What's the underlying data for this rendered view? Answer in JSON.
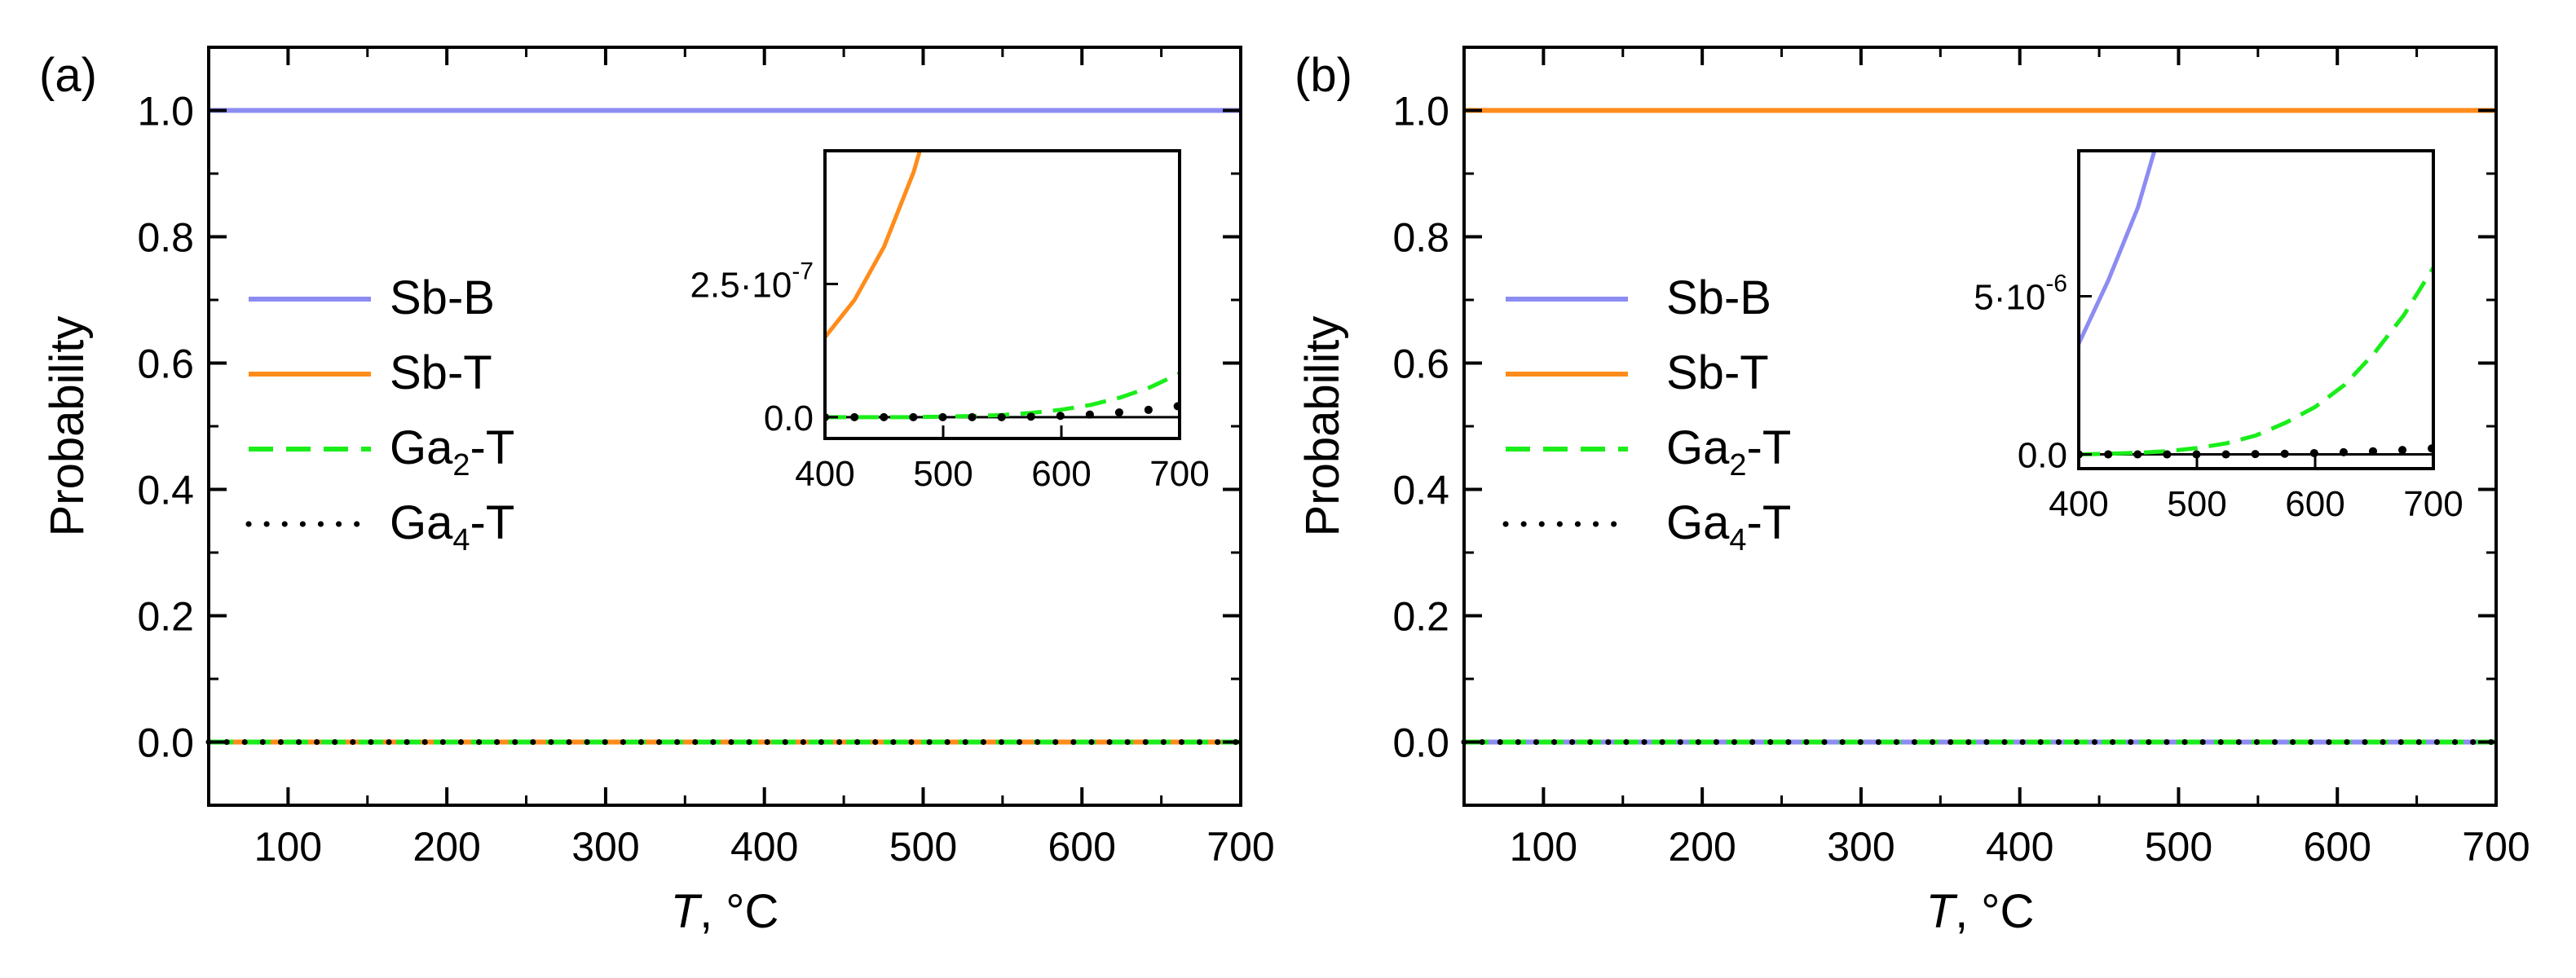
{
  "figure": {
    "panels": [
      "(a)",
      "(b)"
    ],
    "legend": [
      {
        "label": "Sb-B",
        "color": "#8c8cf2",
        "dash": "solid"
      },
      {
        "label": "Sb-T",
        "color": "#ff8c1a",
        "dash": "solid"
      },
      {
        "label": "Ga2-T",
        "base": "Ga",
        "sub": "2",
        "suffix": "-T",
        "color": "#1aee1a",
        "dash": "dashed"
      },
      {
        "label": "Ga4-T",
        "base": "Ga",
        "sub": "4",
        "suffix": "-T",
        "color": "#000000",
        "dash": "dotted"
      }
    ]
  },
  "chart_data": [
    {
      "type": "line",
      "panel": "(a)",
      "xlabel_italic": "T",
      "xlabel_rest": ", °C",
      "ylabel": "Probability",
      "xlim": [
        50,
        700
      ],
      "ylim": [
        -0.1,
        1.1
      ],
      "xticks": [
        100,
        200,
        300,
        400,
        500,
        600,
        700
      ],
      "yticks": [
        "0.0",
        "0.2",
        "0.4",
        "0.6",
        "0.8",
        "1.0"
      ],
      "x": [
        50,
        700
      ],
      "series": [
        {
          "name": "Sb-B",
          "values": [
            1.0,
            1.0
          ]
        },
        {
          "name": "Sb-T",
          "values": [
            0.0,
            0.0
          ]
        },
        {
          "name": "Ga2-T",
          "values": [
            0.0,
            0.0
          ]
        },
        {
          "name": "Ga4-T",
          "values": [
            0.0,
            0.0
          ]
        }
      ],
      "inset": {
        "xlim": [
          400,
          700
        ],
        "ylim": [
          -4e-08,
          5e-07
        ],
        "xticks": [
          "400",
          "500",
          "600",
          "700"
        ],
        "yticks": [
          {
            "value": 0,
            "mantissa": "0.0",
            "exp": ""
          },
          {
            "value": 2.5e-07,
            "mantissa": "2.5·10",
            "exp": "-7"
          }
        ],
        "x": [
          400,
          425,
          450,
          475,
          500,
          525,
          550,
          575,
          600,
          625,
          650,
          675,
          700
        ],
        "series": [
          {
            "name": "Sb-T",
            "values": [
              1.5e-07,
              2.2e-07,
              3.2e-07,
              4.6e-07,
              6.5e-07,
              null,
              null,
              null,
              null,
              null,
              null,
              null,
              null
            ]
          },
          {
            "name": "Ga2-T",
            "values": [
              0,
              0,
              0,
              0,
              1e-09,
              2e-09,
              4e-09,
              8e-09,
              1.4e-08,
              2.3e-08,
              3.7e-08,
              5.6e-08,
              8.2e-08
            ]
          },
          {
            "name": "Ga4-T",
            "values": [
              0,
              0,
              0,
              0,
              0,
              0,
              0,
              1e-09,
              2.5e-09,
              5e-09,
              9e-09,
              1.4e-08,
              2.1e-08
            ]
          }
        ]
      }
    },
    {
      "type": "line",
      "panel": "(b)",
      "xlabel_italic": "T",
      "xlabel_rest": ", °C",
      "ylabel": "Probability",
      "xlim": [
        50,
        700
      ],
      "ylim": [
        -0.1,
        1.1
      ],
      "xticks": [
        100,
        200,
        300,
        400,
        500,
        600,
        700
      ],
      "yticks": [
        "0.0",
        "0.2",
        "0.4",
        "0.6",
        "0.8",
        "1.0"
      ],
      "x": [
        50,
        700
      ],
      "series": [
        {
          "name": "Sb-B",
          "values": [
            0.0,
            0.0
          ]
        },
        {
          "name": "Sb-T",
          "values": [
            1.0,
            1.0
          ]
        },
        {
          "name": "Ga2-T",
          "values": [
            0.0,
            0.0
          ]
        },
        {
          "name": "Ga4-T",
          "values": [
            0.0,
            0.0
          ]
        }
      ],
      "inset": {
        "xlim": [
          400,
          700
        ],
        "ylim": [
          -4.5e-07,
          9.6e-06
        ],
        "xticks": [
          "400",
          "500",
          "600",
          "700"
        ],
        "yticks": [
          {
            "value": 0,
            "mantissa": "0.0",
            "exp": ""
          },
          {
            "value": 5e-06,
            "mantissa": "5·10",
            "exp": "-6"
          }
        ],
        "x": [
          400,
          425,
          450,
          475,
          500,
          525,
          550,
          575,
          600,
          625,
          650,
          675,
          700
        ],
        "series": [
          {
            "name": "Sb-B",
            "values": [
              3.5e-06,
              5.5e-06,
              7.8e-06,
              1.1e-05,
              null,
              null,
              null,
              null,
              null,
              null,
              null,
              null,
              null
            ]
          },
          {
            "name": "Ga2-T",
            "values": [
              0,
              2e-08,
              5e-08,
              1e-07,
              2e-07,
              3.5e-07,
              6e-07,
              1e-06,
              1.5e-06,
              2.2e-06,
              3.2e-06,
              4.4e-06,
              5.9e-06
            ]
          },
          {
            "name": "Ga4-T",
            "values": [
              0,
              0,
              0,
              0,
              0,
              0,
              1e-08,
              2e-08,
              4e-08,
              7e-08,
              1e-07,
              1.4e-07,
              1.9e-07
            ]
          }
        ]
      }
    }
  ]
}
